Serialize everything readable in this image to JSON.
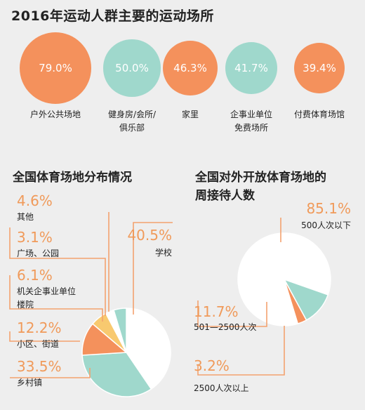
{
  "colors": {
    "orange": "#f4915c",
    "teal": "#9fd8cc",
    "yellow": "#f8c96f",
    "white": "#ffffff",
    "accent_text": "#f09a5a",
    "line": "#f3a26f",
    "background": "#eeeeee"
  },
  "chart_data": [
    {
      "type": "bubble",
      "title": "2016年运动人群主要的运动场所",
      "categories": [
        "户外公共场地",
        "健身房/会所/俱乐部",
        "家里",
        "企事业单位免费场所",
        "付费体育场馆"
      ],
      "values": [
        79.0,
        50.0,
        46.3,
        41.7,
        39.4
      ],
      "value_labels": [
        "79.0%",
        "50.0%",
        "46.3%",
        "41.7%",
        "39.4%"
      ],
      "label_lines": [
        [
          "户外公共场地"
        ],
        [
          "健身房/会所/",
          "俱乐部"
        ],
        [
          "家里"
        ],
        [
          "企事业单位",
          "免费场所"
        ],
        [
          "付费体育场馆"
        ]
      ],
      "colors": [
        "#f4915c",
        "#9fd8cc",
        "#f4915c",
        "#9fd8cc",
        "#f4915c"
      ],
      "unit": "%"
    },
    {
      "type": "pie",
      "title": "全国体育场地分布情况",
      "categories": [
        "学校",
        "乡村镇",
        "小区、街道",
        "机关企事业单位楼院",
        "广场、公园",
        "其他"
      ],
      "values": [
        40.5,
        33.5,
        12.2,
        6.1,
        3.1,
        4.6
      ],
      "value_labels": [
        "40.5%",
        "33.5%",
        "12.2%",
        "6.1%",
        "3.1%",
        "4.6%"
      ],
      "label_lines": [
        [
          "学校"
        ],
        [
          "乡村镇"
        ],
        [
          "小区、街道"
        ],
        [
          "机关企事业单位",
          "楼院"
        ],
        [
          "广场、公园"
        ],
        [
          "其他"
        ]
      ],
      "colors": [
        "#ffffff",
        "#9fd8cc",
        "#f4915c",
        "#f8c96f",
        "#ffffff",
        "#9fd8cc"
      ],
      "unit": "%"
    },
    {
      "type": "pie",
      "title_lines": [
        "全国对外开放体育场地的",
        "周接待人数"
      ],
      "categories": [
        "500人次以下",
        "501—2500人次",
        "2500人次以上"
      ],
      "values": [
        85.1,
        11.7,
        3.2
      ],
      "value_labels": [
        "85.1%",
        "11.7%",
        "3.2%"
      ],
      "label_lines": [
        [
          "500人次以下"
        ],
        [
          "501—2500人次"
        ],
        [
          "2500人次以上"
        ]
      ],
      "colors": [
        "#ffffff",
        "#9fd8cc",
        "#f4915c"
      ],
      "unit": "%"
    }
  ]
}
